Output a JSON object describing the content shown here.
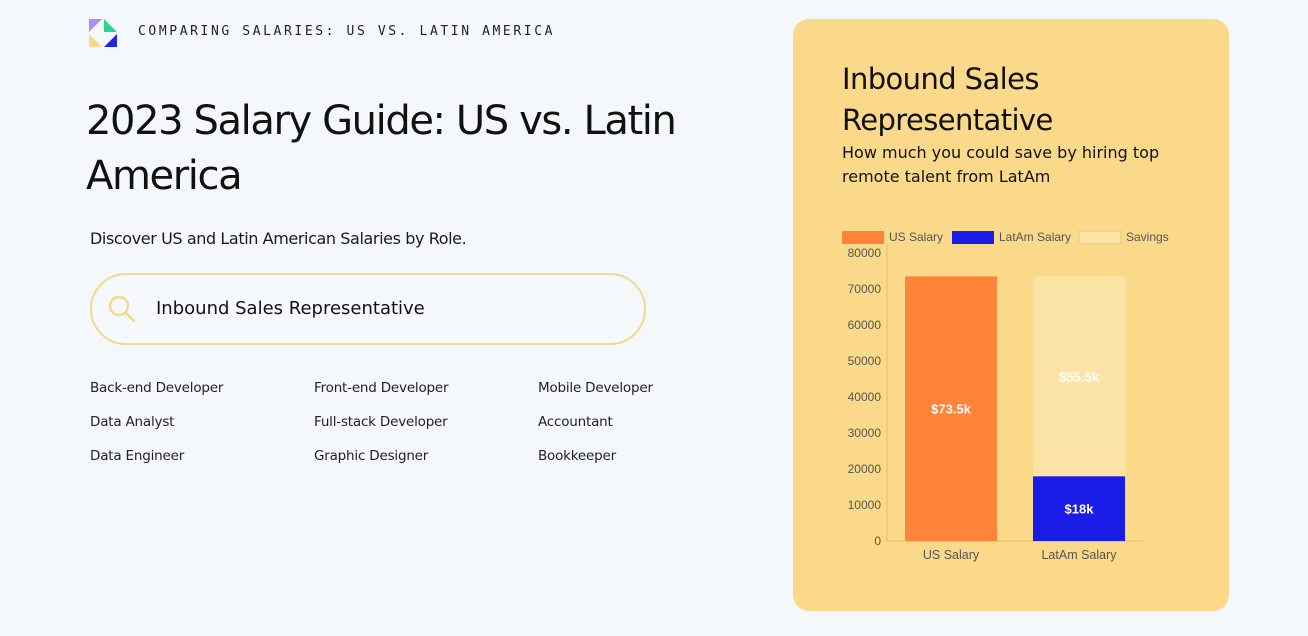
{
  "header": {
    "eyebrow": "COMPARING SALARIES: US VS. LATIN AMERICA",
    "logo_icon": "brand-logo"
  },
  "hero": {
    "title": "2023 Salary Guide: US vs. Latin America",
    "subtitle": "Discover US and Latin American Salaries by Role."
  },
  "search": {
    "icon": "search-icon",
    "value": "Inbound Sales Representative"
  },
  "roles": [
    "Back-end Developer",
    "Front-end Developer",
    "Mobile Developer",
    "Data Analyst",
    "Full-stack Developer",
    "Accountant",
    "Data Engineer",
    "Graphic Designer",
    "Bookkeeper"
  ],
  "card": {
    "title": "Inbound Sales Representative",
    "subtitle": "How much you could save by hiring top remote talent from LatAm"
  },
  "colors": {
    "us": "#ff8338",
    "latam": "#1a1ce8",
    "savings": "#fbe4a6",
    "card_bg": "#fbd98a",
    "search_border": "#f3d98e"
  },
  "chart_data": {
    "type": "bar",
    "stacked": true,
    "categories": [
      "US Salary",
      "LatAm Salary"
    ],
    "series": [
      {
        "name": "US Salary",
        "values": [
          73500,
          0
        ],
        "labels": [
          "$73.5k",
          ""
        ]
      },
      {
        "name": "LatAm Salary",
        "values": [
          0,
          18000
        ],
        "labels": [
          "",
          "$18k"
        ]
      },
      {
        "name": "Savings",
        "values": [
          0,
          55500
        ],
        "labels": [
          "",
          "$55.5k"
        ]
      }
    ],
    "ylim": [
      0,
      80000
    ],
    "yticks": [
      0,
      10000,
      20000,
      30000,
      40000,
      50000,
      60000,
      70000,
      80000
    ],
    "legend_position": "top",
    "grid": false
  }
}
